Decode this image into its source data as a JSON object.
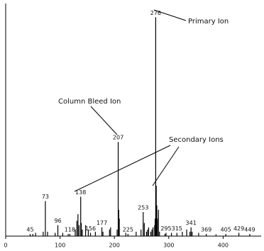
{
  "chart_data": {
    "type": "spectrum",
    "annotations": [
      "Primary Ion",
      "Column Bleed Ion",
      "Secondary Ions"
    ],
    "peaks": {
      "x": [
        45,
        73,
        96,
        118,
        138,
        156,
        177,
        207,
        225,
        253,
        276,
        295,
        315,
        341,
        369,
        405,
        429,
        449
      ],
      "values": [
        1,
        16,
        5,
        1,
        18,
        1.5,
        4,
        43,
        1,
        11,
        100,
        1.5,
        1.5,
        4,
        1,
        1,
        1.5,
        1
      ]
    },
    "minor_peaks": {
      "x": [
        50,
        55,
        69,
        77,
        91,
        105,
        115,
        128,
        131,
        133,
        135,
        139,
        141,
        147,
        152,
        165,
        179,
        191,
        193,
        205,
        208,
        209,
        221,
        240,
        249,
        255,
        259,
        261,
        263,
        267,
        269,
        271,
        274,
        275,
        277,
        278,
        279,
        281,
        283,
        293,
        305,
        325,
        333,
        339,
        343,
        355,
        387
      ],
      "values": [
        1,
        1.5,
        2,
        2,
        1.5,
        1.5,
        1,
        3,
        7,
        10,
        5,
        6,
        3,
        5,
        3,
        2,
        2,
        3,
        4,
        3,
        12,
        8,
        1.5,
        2,
        3,
        6,
        2,
        3,
        4,
        2,
        3,
        4,
        5,
        8,
        23,
        14,
        8,
        12,
        2,
        1,
        1.5,
        2,
        3,
        2,
        2,
        1.5,
        0.8
      ]
    },
    "color": "#000000",
    "xlim": [
      0,
      470
    ],
    "xticks": [
      0,
      100,
      200,
      300,
      400
    ],
    "ylim": [
      0,
      103
    ]
  }
}
